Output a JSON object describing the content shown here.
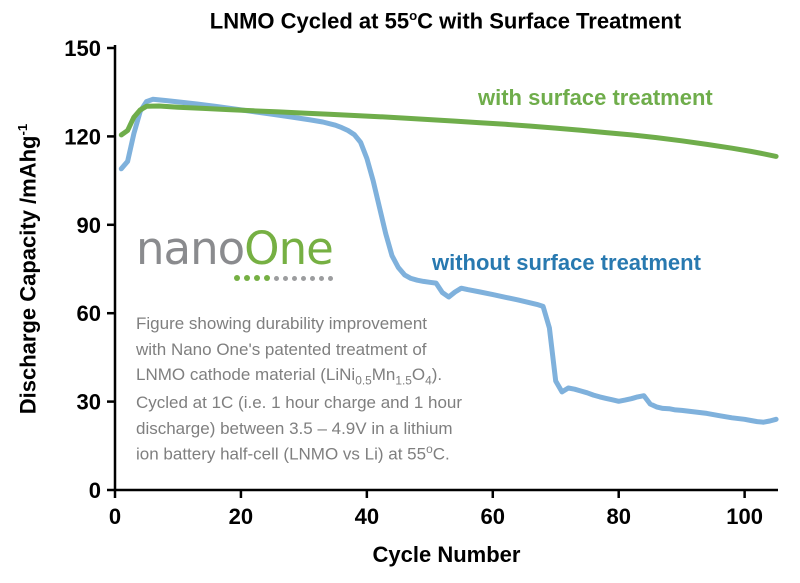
{
  "colors": {
    "axis": "#000000",
    "green_line": "#6fad4b",
    "blue_line": "#7fb1dc",
    "blue_label": "#2879b0",
    "caption_gray": "#7f7f7f",
    "logo_nano_gray": "#8a8b8e",
    "logo_one_green": "#76b043",
    "dot_gray": "#9c9d9f"
  },
  "logo": {
    "nano": "nano",
    "one": "One",
    "green_dots": 4,
    "gray_dots": 7
  },
  "caption": {
    "lines": [
      "Figure showing durability improvement",
      "with Nano One's patented treatment of",
      "LNMO cathode material (LiNi~0.5~Mn~1.5~O~4~).",
      "Cycled at 1C (i.e. 1 hour charge and 1 hour",
      "discharge) between 3.5 – 4.9V in a lithium",
      "ion battery half-cell (LNMO vs Li) at 55^o^C."
    ]
  },
  "chart_data": {
    "type": "line",
    "title": "LNMO Cycled at 55^o^C with Surface Treatment",
    "xlabel": "Cycle Number",
    "ylabel": "Discharge Capacity /mAhg^-1^",
    "xlim": [
      0,
      105.3
    ],
    "ylim": [
      0,
      150
    ],
    "xticks": [
      0,
      20,
      40,
      60,
      80,
      100
    ],
    "yticks": [
      0,
      30,
      60,
      90,
      120,
      150
    ],
    "grid": false,
    "legend_position": "inline-annotations",
    "annotations": [
      {
        "text": "with surface treatment",
        "color": "#6fad4b"
      },
      {
        "text": "without surface treatment",
        "color": "#2879b0"
      }
    ],
    "series": [
      {
        "name": "without surface treatment",
        "color": "#7fb1dc",
        "points": [
          [
            1,
            109
          ],
          [
            2,
            111.5
          ],
          [
            3,
            121
          ],
          [
            4,
            128.5
          ],
          [
            5,
            131.8
          ],
          [
            6,
            132.6
          ],
          [
            8,
            132.2
          ],
          [
            10,
            131.7
          ],
          [
            13,
            131
          ],
          [
            16,
            130.2
          ],
          [
            19,
            129.3
          ],
          [
            22,
            128.4
          ],
          [
            25,
            127.5
          ],
          [
            28,
            126.6
          ],
          [
            31,
            125.6
          ],
          [
            33,
            124.9
          ],
          [
            35,
            123.8
          ],
          [
            36,
            123
          ],
          [
            37,
            122
          ],
          [
            38,
            120.6
          ],
          [
            39,
            118
          ],
          [
            40,
            112.5
          ],
          [
            41,
            105
          ],
          [
            42,
            96
          ],
          [
            43,
            87
          ],
          [
            44,
            79.5
          ],
          [
            45,
            75.5
          ],
          [
            46,
            73
          ],
          [
            47,
            71.8
          ],
          [
            48,
            71.2
          ],
          [
            49,
            70.8
          ],
          [
            50,
            70.5
          ],
          [
            51,
            70.2
          ],
          [
            52,
            67
          ],
          [
            53,
            65.5
          ],
          [
            54,
            67.2
          ],
          [
            55,
            68.5
          ],
          [
            56,
            68
          ],
          [
            58,
            67.2
          ],
          [
            60,
            66.3
          ],
          [
            62,
            65.4
          ],
          [
            64,
            64.5
          ],
          [
            66,
            63.5
          ],
          [
            67,
            63
          ],
          [
            68,
            62.3
          ],
          [
            69,
            55
          ],
          [
            70,
            37
          ],
          [
            71,
            33.3
          ],
          [
            72,
            34.6
          ],
          [
            73,
            34.2
          ],
          [
            74,
            33.6
          ],
          [
            75,
            33
          ],
          [
            76,
            32.2
          ],
          [
            77,
            31.6
          ],
          [
            78,
            31.1
          ],
          [
            79,
            30.6
          ],
          [
            80,
            30.1
          ],
          [
            81,
            30.5
          ],
          [
            82,
            31
          ],
          [
            83,
            31.6
          ],
          [
            84,
            32
          ],
          [
            85,
            29.2
          ],
          [
            86,
            28.2
          ],
          [
            87,
            27.7
          ],
          [
            88,
            27.6
          ],
          [
            89,
            27.2
          ],
          [
            90,
            27
          ],
          [
            92,
            26.5
          ],
          [
            94,
            26
          ],
          [
            96,
            25.2
          ],
          [
            98,
            24.5
          ],
          [
            100,
            24
          ],
          [
            101,
            23.6
          ],
          [
            102,
            23.2
          ],
          [
            103,
            23
          ],
          [
            104,
            23.4
          ],
          [
            105,
            24
          ]
        ]
      },
      {
        "name": "with surface treatment",
        "color": "#6fad4b",
        "points": [
          [
            1,
            120.5
          ],
          [
            2,
            122
          ],
          [
            3,
            126.5
          ],
          [
            4,
            129
          ],
          [
            5,
            130.2
          ],
          [
            7,
            130.3
          ],
          [
            10,
            129.9
          ],
          [
            14,
            129.5
          ],
          [
            18,
            129.1
          ],
          [
            22,
            128.7
          ],
          [
            26,
            128.3
          ],
          [
            30,
            127.9
          ],
          [
            34,
            127.5
          ],
          [
            38,
            127.1
          ],
          [
            42,
            126.7
          ],
          [
            46,
            126.2
          ],
          [
            50,
            125.7
          ],
          [
            54,
            125.2
          ],
          [
            58,
            124.6
          ],
          [
            62,
            124.1
          ],
          [
            66,
            123.5
          ],
          [
            70,
            122.8
          ],
          [
            74,
            122.1
          ],
          [
            78,
            121.3
          ],
          [
            82,
            120.5
          ],
          [
            86,
            119.6
          ],
          [
            90,
            118.5
          ],
          [
            94,
            117.3
          ],
          [
            98,
            116
          ],
          [
            101,
            114.9
          ],
          [
            103,
            114.1
          ],
          [
            105,
            113.2
          ]
        ]
      }
    ]
  }
}
